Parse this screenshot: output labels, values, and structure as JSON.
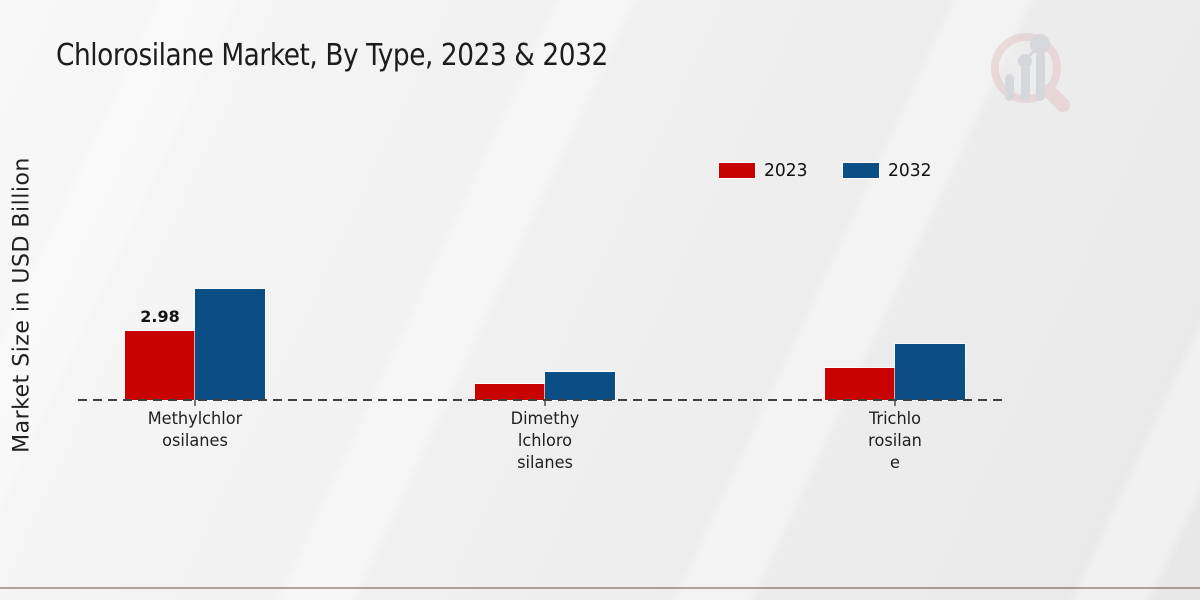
{
  "title": "Chlorosilane Market, By Type, 2023 & 2032",
  "ylabel": "Market Size in USD Billion",
  "legend": {
    "items": [
      {
        "label": "2023",
        "color": "#c80101"
      },
      {
        "label": "2032",
        "color": "#0b4d85"
      }
    ]
  },
  "chart_data": {
    "type": "bar",
    "title": "Chlorosilane Market, By Type, 2023 & 2032",
    "xlabel": "",
    "ylabel": "Market Size in USD Billion",
    "categories": [
      "Methylchlorosilanes",
      "Dimethylchlorosilanes",
      "Trichlorosilane"
    ],
    "category_display_lines": [
      [
        "Methylchlor",
        "osilanes"
      ],
      [
        "Dimethy",
        "lchloro",
        "silanes"
      ],
      [
        "Trichlo",
        "rosilan",
        "e"
      ]
    ],
    "series": [
      {
        "name": "2023",
        "color": "#c80101",
        "values": [
          2.98,
          0.7,
          1.4
        ]
      },
      {
        "name": "2032",
        "color": "#0b4d85",
        "values": [
          4.8,
          1.2,
          2.4
        ]
      }
    ],
    "data_labels": [
      {
        "series_index": 0,
        "category_index": 0,
        "text": "2.98"
      }
    ],
    "legend_position": "top-right",
    "grid": false,
    "y_axis_ticks_visible": false,
    "baseline_style": "dashed"
  },
  "footer": {
    "bar_color": "#c40101"
  },
  "logo": {
    "name": "market-research-future-watermark"
  },
  "axis": {
    "color": "#3f3f3f"
  }
}
